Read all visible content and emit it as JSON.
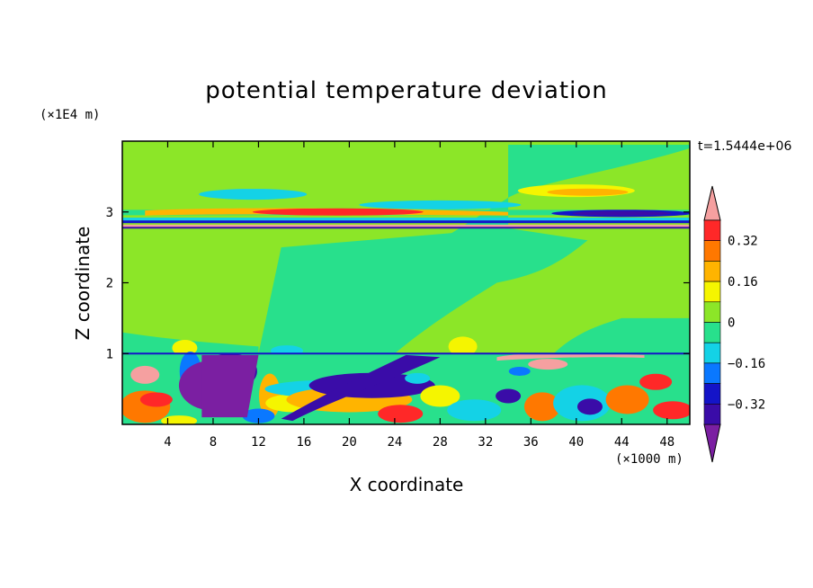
{
  "chart_data": {
    "type": "heatmap",
    "title": "potential temperature deviation",
    "xlabel": "X coordinate",
    "ylabel": "Z coordinate",
    "x_multiplier": "(×1000 m)",
    "y_multiplier": "(×1E4 m)",
    "time_label": "t=1.5444e+06",
    "xlim": [
      0,
      50
    ],
    "ylim": [
      0,
      4
    ],
    "x_ticks": [
      "4",
      "8",
      "12",
      "16",
      "20",
      "24",
      "28",
      "32",
      "36",
      "40",
      "44",
      "48"
    ],
    "y_ticks": [
      "1",
      "2",
      "3"
    ],
    "colorbar": {
      "levels": [
        "0.32",
        "0.16",
        "0",
        "−0.16",
        "−0.32"
      ],
      "colors": [
        "#7b1fa2",
        "#3a0ca8",
        "#1414c8",
        "#0a78ff",
        "#14d2e6",
        "#28e08c",
        "#8ce628",
        "#f5f500",
        "#ffb400",
        "#ff7800",
        "#ff2828",
        "#f5a0a0"
      ],
      "extend": "both"
    }
  }
}
